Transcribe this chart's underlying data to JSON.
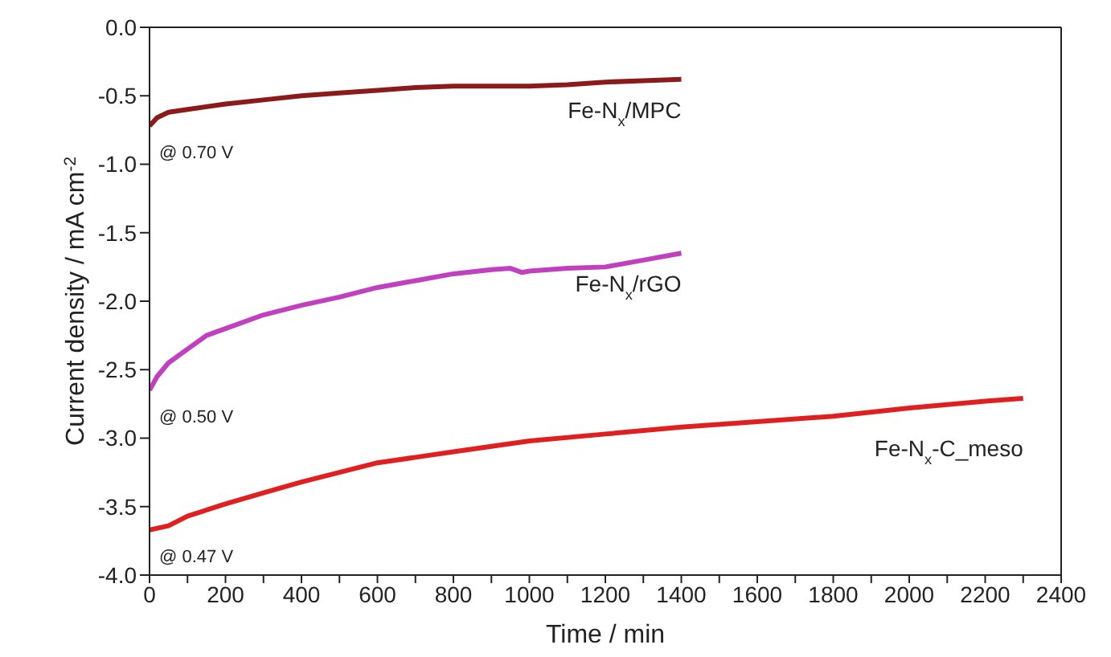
{
  "chart_data": {
    "type": "line",
    "xlabel": "Time / min",
    "ylabel": "Current density / mA cm$^{-2}$",
    "xlim": [
      0,
      2400
    ],
    "ylim": [
      -4,
      0
    ],
    "xticks": [
      0,
      {
        "value": 100,
        "label": null
      },
      200,
      {
        "value": 300,
        "label": null
      },
      400,
      {
        "value": 500,
        "label": null
      },
      600,
      {
        "value": 700,
        "label": null
      },
      800,
      {
        "value": 900,
        "label": null
      },
      1000,
      {
        "value": 1100,
        "label": null
      },
      1200,
      {
        "value": 1300,
        "label": null
      },
      1400,
      {
        "value": 1500,
        "label": null
      },
      1600,
      {
        "value": 1700,
        "label": null
      },
      1800,
      {
        "value": 1900,
        "label": null
      },
      2000,
      {
        "value": 2100,
        "label": null
      },
      2200,
      {
        "value": 2300,
        "label": null
      },
      2400
    ],
    "yticks": [
      {
        "value": 0,
        "label": "0.0"
      },
      -0.5,
      {
        "value": -1,
        "label": "-1.0"
      },
      -1.5,
      {
        "value": -2,
        "label": "-2.0"
      },
      -2.5,
      {
        "value": -3,
        "label": "-3.0"
      },
      -3.5,
      {
        "value": -4,
        "label": "-4.0"
      }
    ],
    "marker": "none",
    "line_style": "solid",
    "series": [
      {
        "name": "Fe-N$_{x}$/MPC",
        "color": "#8b1a1a",
        "x": [
          0,
          20,
          50,
          100,
          200,
          300,
          400,
          500,
          600,
          700,
          800,
          900,
          1000,
          1100,
          1200,
          1300,
          1400
        ],
        "values": [
          -0.72,
          -0.66,
          -0.62,
          -0.6,
          -0.56,
          -0.53,
          -0.5,
          -0.48,
          -0.46,
          -0.44,
          -0.43,
          -0.43,
          -0.43,
          -0.42,
          -0.4,
          -0.39,
          -0.38
        ]
      },
      {
        "name": "Fe-N$_{x}$/rGO",
        "color": "#c040c0",
        "x": [
          0,
          20,
          50,
          100,
          150,
          200,
          300,
          400,
          500,
          600,
          700,
          800,
          900,
          950,
          980,
          1000,
          1100,
          1200,
          1300,
          1400
        ],
        "values": [
          -2.65,
          -2.55,
          -2.45,
          -2.35,
          -2.25,
          -2.2,
          -2.1,
          -2.03,
          -1.97,
          -1.9,
          -1.85,
          -1.8,
          -1.77,
          -1.76,
          -1.79,
          -1.78,
          -1.76,
          -1.75,
          -1.7,
          -1.65
        ]
      },
      {
        "name": "Fe-N$_{x}$-C_meso",
        "color": "#e02020",
        "x": [
          0,
          50,
          100,
          200,
          300,
          400,
          500,
          600,
          700,
          800,
          900,
          1000,
          1200,
          1400,
          1600,
          1800,
          2000,
          2200,
          2300
        ],
        "values": [
          -3.67,
          -3.64,
          -3.57,
          -3.48,
          -3.4,
          -3.32,
          -3.25,
          -3.18,
          -3.14,
          -3.1,
          -3.06,
          -3.02,
          -2.97,
          -2.92,
          -2.88,
          -2.84,
          -2.78,
          -2.73,
          -2.71
        ]
      }
    ],
    "annotations": [
      "@ 0.70 V",
      "@ 0.50 V",
      "@ 0.47 V"
    ]
  }
}
